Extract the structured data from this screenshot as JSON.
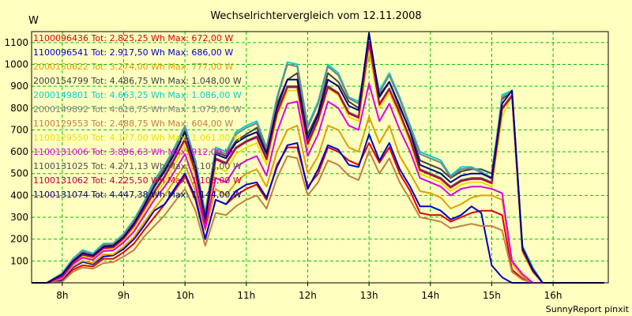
{
  "chart_data": {
    "type": "line",
    "title": "Wechselrichtervergleich vom 12.11.2008",
    "ylabel": "W",
    "footer": "SunnyReport pinxit",
    "ylim": [
      0,
      1150
    ],
    "xlim": [
      7.5,
      16.9
    ],
    "yticks": [
      100,
      200,
      300,
      400,
      500,
      600,
      700,
      800,
      900,
      1000,
      1100
    ],
    "xticks": [
      {
        "value": 8,
        "label": "8h"
      },
      {
        "value": 9,
        "label": "9h"
      },
      {
        "value": 10,
        "label": "10h"
      },
      {
        "value": 11,
        "label": "11h"
      },
      {
        "value": 12,
        "label": "12h"
      },
      {
        "value": 13,
        "label": "13h"
      },
      {
        "value": 14,
        "label": "14h"
      },
      {
        "value": 15,
        "label": "15h"
      },
      {
        "value": 16,
        "label": "16h"
      }
    ],
    "grid": true,
    "legend_placement": "top-left",
    "x": [
      7.5,
      7.75,
      8.0,
      8.17,
      8.33,
      8.5,
      8.67,
      8.83,
      9.0,
      9.17,
      9.33,
      9.5,
      9.67,
      9.83,
      10.0,
      10.17,
      10.33,
      10.5,
      10.67,
      10.83,
      11.0,
      11.17,
      11.33,
      11.5,
      11.67,
      11.83,
      12.0,
      12.17,
      12.33,
      12.5,
      12.67,
      12.83,
      13.0,
      13.17,
      13.33,
      13.5,
      13.67,
      13.83,
      14.0,
      14.17,
      14.33,
      14.5,
      14.67,
      14.83,
      15.0,
      15.17,
      15.33,
      15.5,
      15.67,
      15.83,
      16.0,
      16.17,
      16.33,
      16.5,
      16.67,
      16.83
    ],
    "series": [
      {
        "name": "1100096436 Tot: 2.825,25 Wh Max: 672,00 W",
        "color": "#e00000",
        "values": [
          0,
          0,
          10,
          60,
          80,
          75,
          110,
          110,
          140,
          180,
          240,
          300,
          360,
          420,
          490,
          380,
          200,
          380,
          360,
          400,
          430,
          450,
          380,
          540,
          620,
          620,
          440,
          500,
          620,
          600,
          560,
          540,
          640,
          550,
          620,
          500,
          420,
          320,
          310,
          310,
          280,
          300,
          320,
          330,
          330,
          310,
          60,
          20,
          0,
          0,
          0,
          0,
          0,
          0,
          0,
          0
        ]
      },
      {
        "name": "1100096541 Tot: 2.917,50 Wh Max: 686,00 W",
        "color": "#0000d0",
        "values": [
          0,
          0,
          15,
          70,
          95,
          85,
          120,
          125,
          155,
          200,
          260,
          330,
          360,
          430,
          500,
          390,
          200,
          380,
          360,
          420,
          450,
          460,
          390,
          530,
          630,
          640,
          430,
          520,
          630,
          610,
          540,
          530,
          680,
          560,
          640,
          520,
          440,
          350,
          350,
          330,
          290,
          310,
          350,
          320,
          80,
          25,
          0,
          0,
          0,
          0,
          0,
          0,
          0,
          0,
          0,
          0
        ]
      },
      {
        "name": "2000150622 Tot: 3.274,00 Wh Max: 777,00 W",
        "color": "#e0a000",
        "values": [
          0,
          0,
          20,
          75,
          100,
          90,
          130,
          130,
          165,
          210,
          275,
          340,
          400,
          470,
          540,
          420,
          240,
          430,
          400,
          460,
          500,
          520,
          440,
          600,
          700,
          720,
          500,
          580,
          720,
          700,
          620,
          600,
          760,
          640,
          720,
          580,
          500,
          420,
          410,
          390,
          340,
          360,
          390,
          400,
          400,
          380,
          90,
          30,
          0,
          0,
          0,
          0,
          0,
          0,
          0,
          0
        ]
      },
      {
        "name": "2000154799 Tot: 4.486,75 Wh Max: 1.048,00 W",
        "color": "#404040",
        "values": [
          0,
          0,
          40,
          100,
          140,
          125,
          170,
          175,
          220,
          280,
          360,
          450,
          520,
          600,
          700,
          540,
          300,
          600,
          580,
          650,
          680,
          710,
          600,
          820,
          930,
          960,
          680,
          780,
          960,
          920,
          830,
          800,
          1048,
          860,
          920,
          800,
          700,
          560,
          540,
          520,
          480,
          510,
          520,
          520,
          500,
          840,
          880,
          160,
          60,
          0,
          0,
          0,
          0,
          0,
          0,
          0
        ]
      },
      {
        "name": "2000149801 Tot: 4.663,25 Wh Max: 1.086,00 W",
        "color": "#00d0d0",
        "values": [
          0,
          0,
          45,
          110,
          150,
          135,
          180,
          180,
          225,
          290,
          370,
          470,
          540,
          620,
          720,
          560,
          320,
          620,
          600,
          690,
          720,
          740,
          620,
          850,
          1010,
          1000,
          720,
          830,
          1000,
          960,
          850,
          830,
          1086,
          880,
          960,
          850,
          720,
          600,
          580,
          560,
          490,
          530,
          530,
          510,
          480,
          860,
          880,
          170,
          70,
          0,
          0,
          0,
          0,
          0,
          0,
          0
        ]
      },
      {
        "name": "2000149892 Tot: 4.616,75 Wh Max: 1.075,00 W",
        "color": "#808080",
        "values": [
          0,
          0,
          42,
          105,
          145,
          130,
          175,
          178,
          220,
          285,
          365,
          460,
          535,
          610,
          710,
          550,
          315,
          610,
          590,
          680,
          710,
          730,
          615,
          840,
          1000,
          990,
          710,
          820,
          990,
          950,
          845,
          820,
          1075,
          870,
          950,
          840,
          710,
          590,
          570,
          550,
          485,
          520,
          525,
          505,
          475,
          850,
          875,
          165,
          65,
          0,
          0,
          0,
          0,
          0,
          0,
          0
        ]
      },
      {
        "name": "1100129553 Tot: 2.488,75 Wh Max: 604,00 W",
        "color": "#c08040",
        "values": [
          0,
          0,
          5,
          50,
          70,
          65,
          90,
          95,
          120,
          150,
          210,
          260,
          310,
          370,
          430,
          330,
          170,
          320,
          310,
          350,
          380,
          400,
          340,
          480,
          580,
          570,
          400,
          460,
          560,
          540,
          490,
          470,
          604,
          500,
          570,
          460,
          380,
          300,
          290,
          280,
          250,
          260,
          270,
          260,
          260,
          240,
          50,
          15,
          0,
          0,
          0,
          0,
          0,
          0,
          0,
          0
        ]
      },
      {
        "name": "1100129550 Tot: 4.177,00 Wh Max: 1.061,00 W",
        "color": "#e8e000",
        "values": [
          0,
          0,
          30,
          90,
          120,
          110,
          150,
          155,
          195,
          250,
          320,
          400,
          460,
          540,
          630,
          480,
          260,
          530,
          510,
          590,
          620,
          640,
          540,
          760,
          880,
          880,
          620,
          740,
          890,
          860,
          760,
          740,
          1061,
          800,
          870,
          760,
          640,
          500,
          480,
          460,
          420,
          450,
          460,
          460,
          440,
          760,
          860,
          140,
          50,
          0,
          0,
          0,
          0,
          0,
          0,
          0
        ]
      },
      {
        "name": "1100131006 Tot: 3.896,63 Wh Max: 912,00 W",
        "color": "#e000e0",
        "values": [
          0,
          0,
          25,
          85,
          115,
          105,
          145,
          148,
          185,
          235,
          305,
          380,
          440,
          510,
          590,
          450,
          250,
          480,
          460,
          530,
          560,
          580,
          490,
          690,
          820,
          830,
          580,
          680,
          830,
          800,
          720,
          700,
          912,
          740,
          820,
          700,
          600,
          480,
          460,
          440,
          400,
          430,
          440,
          440,
          430,
          410,
          100,
          40,
          0,
          0,
          0,
          0,
          0,
          0,
          0,
          0
        ]
      },
      {
        "name": "1100131025 Tot: 4.271,13 Wh Max: 1.102,00 W",
        "color": "#505050",
        "values": [
          0,
          0,
          35,
          95,
          130,
          120,
          160,
          165,
          205,
          265,
          340,
          420,
          490,
          570,
          660,
          510,
          280,
          570,
          550,
          620,
          650,
          670,
          570,
          780,
          900,
          900,
          640,
          750,
          900,
          870,
          780,
          760,
          1102,
          820,
          890,
          780,
          660,
          520,
          500,
          480,
          440,
          470,
          480,
          480,
          460,
          800,
          860,
          150,
          55,
          0,
          0,
          0,
          0,
          0,
          0,
          0
        ]
      },
      {
        "name": "1100131062 Tot: 4.225,50 Wh Max: 1.103,00 W",
        "color": "#c00040",
        "values": [
          0,
          0,
          33,
          93,
          128,
          118,
          158,
          162,
          202,
          262,
          335,
          415,
          485,
          565,
          655,
          505,
          275,
          565,
          545,
          615,
          645,
          665,
          565,
          775,
          895,
          895,
          635,
          745,
          895,
          865,
          775,
          755,
          1103,
          815,
          885,
          775,
          655,
          515,
          495,
          475,
          435,
          465,
          475,
          475,
          455,
          795,
          855,
          148,
          52,
          0,
          0,
          0,
          0,
          0,
          0,
          0
        ]
      },
      {
        "name": "1100131074 Tot: 4.447,38 Wh Max: 1.144,00 W",
        "color": "#000080",
        "values": [
          0,
          0,
          38,
          98,
          135,
          125,
          165,
          170,
          210,
          272,
          350,
          440,
          510,
          590,
          690,
          530,
          295,
          590,
          570,
          640,
          670,
          690,
          590,
          800,
          930,
          930,
          660,
          770,
          930,
          900,
          810,
          790,
          1144,
          850,
          920,
          810,
          690,
          540,
          520,
          500,
          460,
          490,
          500,
          500,
          480,
          820,
          880,
          160,
          60,
          0,
          0,
          0,
          0,
          0,
          0,
          0
        ]
      }
    ]
  }
}
